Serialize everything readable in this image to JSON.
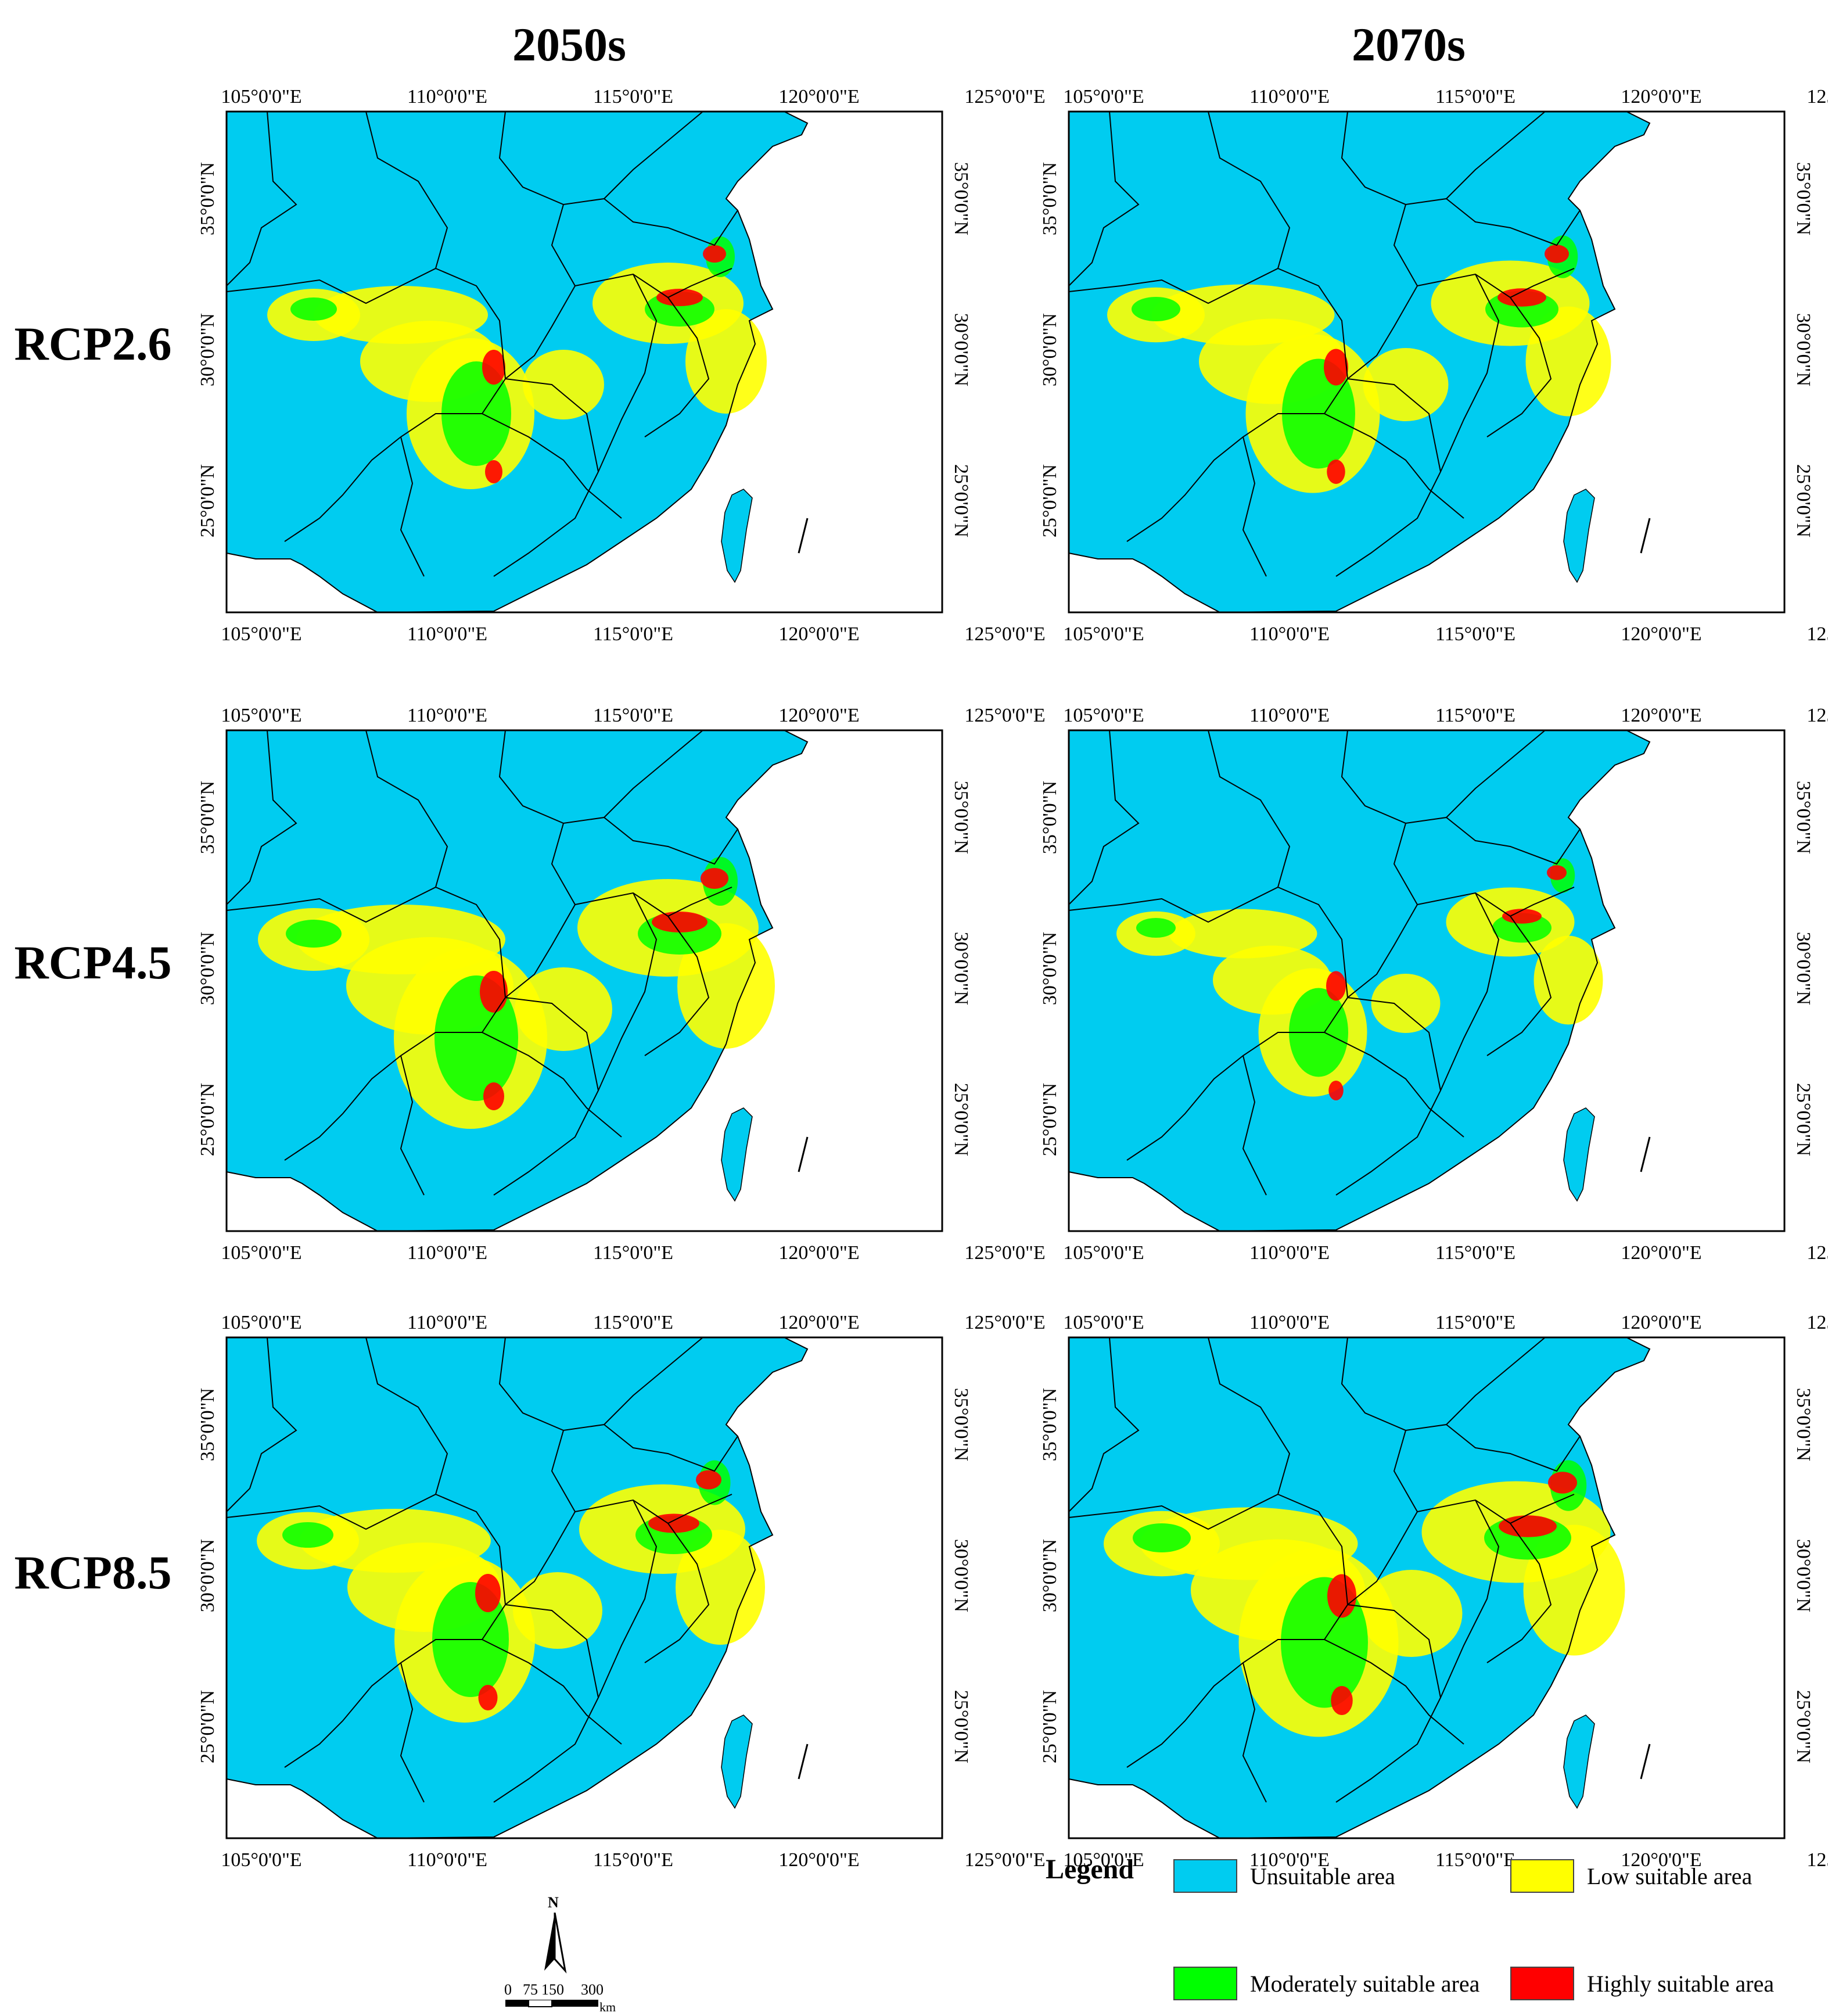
{
  "columns": [
    "2050s",
    "2070s"
  ],
  "rows": [
    "RCP2.6",
    "RCP4.5",
    "RCP8.5"
  ],
  "axes": {
    "x_labels": [
      "105°0'0\"E",
      "110°0'0\"E",
      "115°0'0\"E",
      "120°0'0\"E",
      "125°0'0\"E"
    ],
    "y_labels": [
      "35°0'0\"N",
      "30°0'0\"N",
      "25°0'0\"N"
    ]
  },
  "legend": {
    "title": "Legend",
    "items": [
      {
        "label": "Unsuitable area",
        "color": "#00ccf0"
      },
      {
        "label": "Low suitable area",
        "color": "#ffff00"
      },
      {
        "label": "Moderately suitable area",
        "color": "#00ff00"
      },
      {
        "label": "Highly suitable area",
        "color": "#ff0000"
      }
    ]
  },
  "scale_bar": {
    "north": "N",
    "labels": [
      "0",
      "75",
      "150",
      "300"
    ],
    "unit": "km"
  },
  "colors": {
    "unsuitable": "#00ccf0",
    "low": "#ffff00",
    "moderate": "#00ff00",
    "high": "#ff0000",
    "boundary": "#000000"
  }
}
